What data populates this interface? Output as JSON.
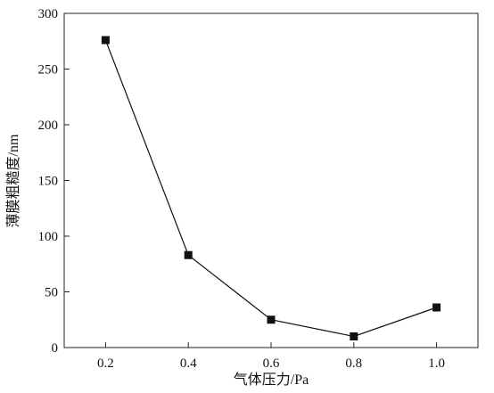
{
  "chart_data": {
    "type": "line",
    "title": "",
    "xlabel": "气体压力/Pa",
    "ylabel": "薄膜粗糙度/nm",
    "x": [
      0.2,
      0.4,
      0.6,
      0.8,
      1.0
    ],
    "x_tick_labels": [
      "0.2",
      "0.4",
      "0.6",
      "0.8",
      "1.0"
    ],
    "y_tick_values": [
      0,
      50,
      100,
      150,
      200,
      250,
      300
    ],
    "y_tick_labels": [
      "0",
      "50",
      "100",
      "150",
      "200",
      "250",
      "300"
    ],
    "xlim": [
      0.1,
      1.1
    ],
    "ylim": [
      0,
      300
    ],
    "series": [
      {
        "values": [
          276,
          83,
          25,
          10,
          36
        ],
        "color": "#111111",
        "marker": "square"
      }
    ],
    "grid": false,
    "legend": "none"
  }
}
